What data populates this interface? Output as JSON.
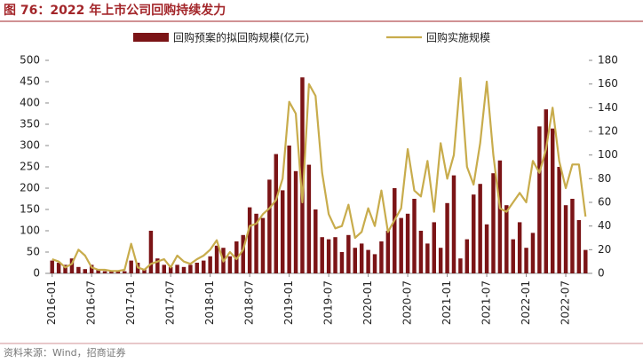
{
  "chart_data": {
    "type": "bar-line",
    "title": "图 76：2022 年上市公司回购持续发力",
    "source": "资料来源：Wind，招商证券",
    "categories": [
      "2016-01",
      null,
      null,
      null,
      null,
      null,
      "2016-07",
      null,
      null,
      null,
      null,
      null,
      "2017-01",
      null,
      null,
      null,
      null,
      null,
      "2017-07",
      null,
      null,
      null,
      null,
      null,
      "2018-01",
      null,
      null,
      null,
      null,
      null,
      "2018-07",
      null,
      null,
      null,
      null,
      null,
      "2019-01",
      null,
      null,
      null,
      null,
      null,
      "2019-07",
      null,
      null,
      null,
      null,
      null,
      "2020-01",
      null,
      null,
      null,
      null,
      null,
      "2020-07",
      null,
      null,
      null,
      null,
      null,
      "2021-01",
      null,
      null,
      null,
      null,
      null,
      "2021-07",
      null,
      null,
      null,
      null,
      null,
      "2022-01",
      null,
      null,
      null,
      null,
      null,
      "2022-07",
      null,
      null,
      null
    ],
    "series": [
      {
        "name": "回购预案的拟回购规模(亿元)",
        "color": "#7b1416",
        "kind": "bar",
        "axis": "y",
        "values": [
          30,
          25,
          20,
          35,
          15,
          10,
          20,
          10,
          5,
          5,
          5,
          5,
          30,
          25,
          10,
          100,
          35,
          20,
          15,
          20,
          15,
          20,
          25,
          30,
          40,
          65,
          60,
          40,
          75,
          90,
          155,
          140,
          130,
          220,
          280,
          195,
          300,
          240,
          460,
          255,
          150,
          85,
          80,
          85,
          50,
          90,
          60,
          70,
          55,
          45,
          75,
          100,
          200,
          130,
          140,
          175,
          100,
          70,
          120,
          60,
          165,
          230,
          35,
          80,
          185,
          210,
          115,
          235,
          265,
          160,
          80,
          120,
          60,
          95,
          345,
          385,
          340,
          250,
          160,
          175,
          125,
          55
        ]
      },
      {
        "name": "回购实施规模",
        "color": "#c8ac4c",
        "kind": "line",
        "axis": "y2",
        "values": [
          12,
          10,
          5,
          8,
          20,
          15,
          5,
          3,
          3,
          2,
          2,
          3,
          25,
          5,
          3,
          8,
          10,
          12,
          5,
          15,
          10,
          8,
          12,
          15,
          20,
          28,
          10,
          18,
          12,
          20,
          40,
          42,
          50,
          55,
          62,
          80,
          145,
          135,
          60,
          160,
          150,
          85,
          50,
          38,
          40,
          58,
          30,
          35,
          55,
          40,
          70,
          35,
          45,
          55,
          105,
          70,
          65,
          95,
          52,
          110,
          80,
          100,
          165,
          90,
          75,
          110,
          162,
          100,
          55,
          52,
          60,
          68,
          60,
          95,
          85,
          105,
          140,
          95,
          72,
          92,
          92,
          48
        ]
      }
    ],
    "ylim": [
      0,
      500
    ],
    "yticks": [
      0,
      50,
      100,
      150,
      200,
      250,
      300,
      350,
      400,
      450,
      500
    ],
    "y2lim": [
      0,
      180
    ],
    "y2ticks": [
      0,
      20,
      40,
      60,
      80,
      100,
      120,
      140,
      160,
      180
    ],
    "legend": "top"
  }
}
